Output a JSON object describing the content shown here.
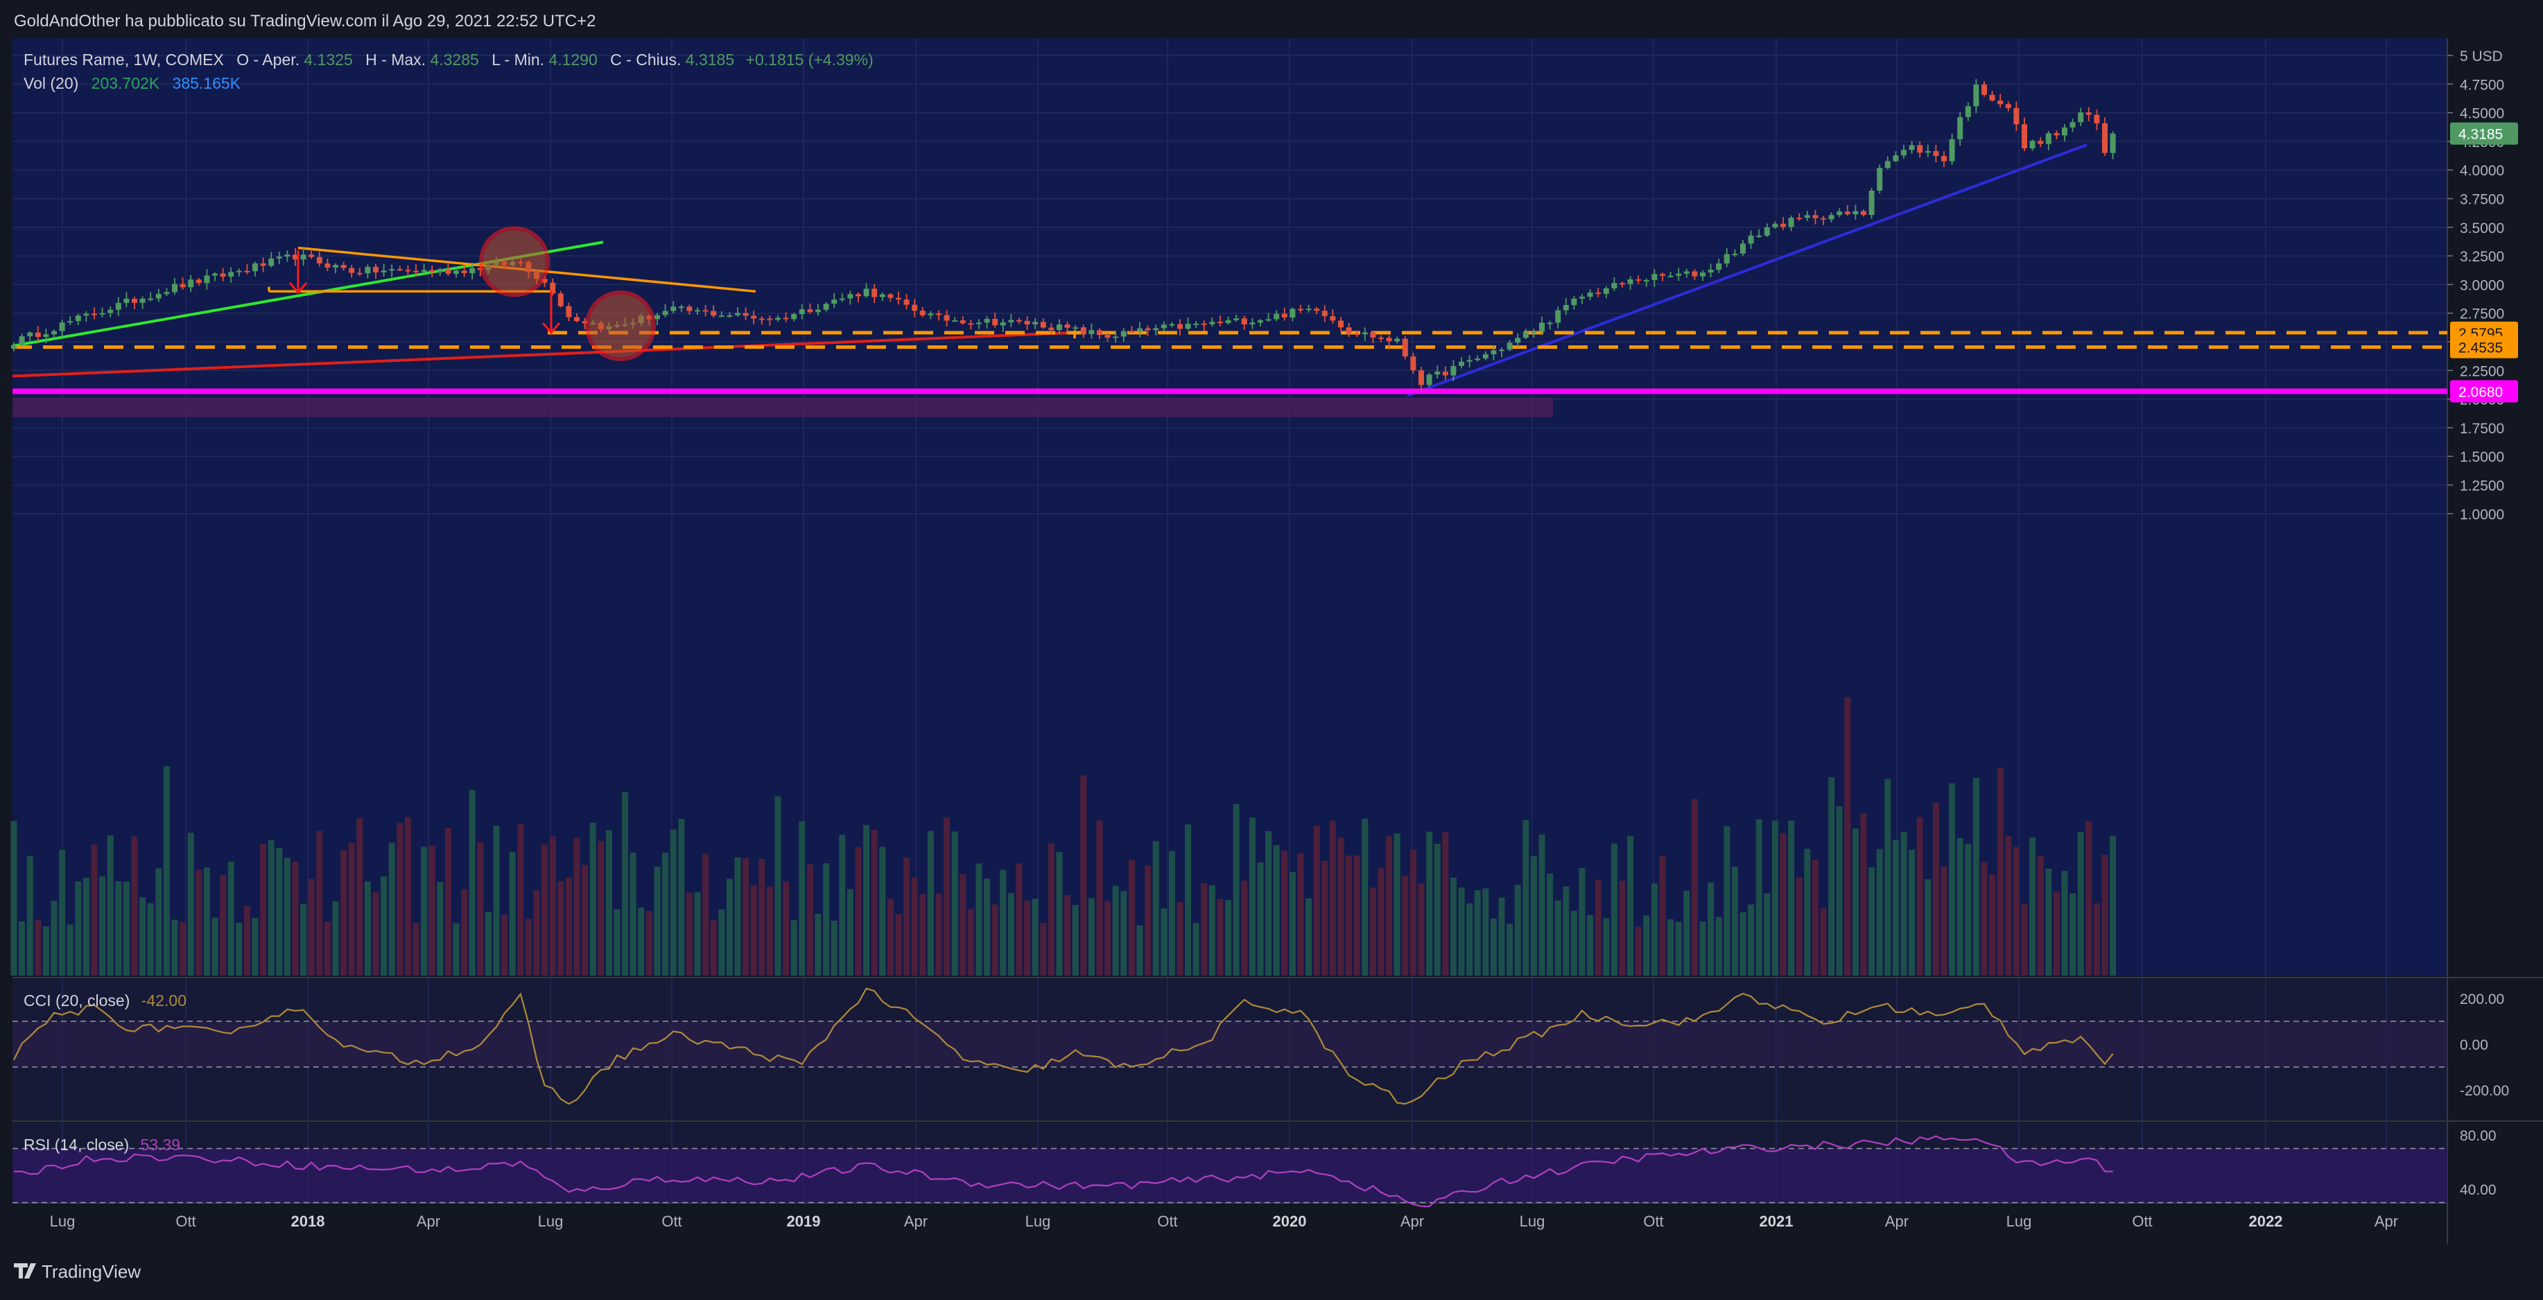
{
  "header": {
    "publish_line": "GoldAndOther ha pubblicato su TradingView.com il Ago 29, 2021 22:52 UTC+2",
    "symbol_line": "Futures Rame, 1W, COMEX",
    "ohlc": [
      {
        "label": "O - Aper.",
        "value": "4.1325"
      },
      {
        "label": "H - Max.",
        "value": "4.3285"
      },
      {
        "label": "L - Min.",
        "value": "4.1290"
      },
      {
        "label": "C - Chius.",
        "value": "4.3185"
      }
    ],
    "change": "+0.1815 (+4.39%)",
    "vol_label": "Vol (20)",
    "vol_value_1": "203.702K",
    "vol_value_2": "385.165K"
  },
  "footer": {
    "brand": "TradingView"
  },
  "colors": {
    "background": "#131722",
    "plot_background": "#111a4d",
    "candle_up": "#4f9a63",
    "candle_down": "#e0533c",
    "vol_up": "#1d4f4a",
    "vol_down": "#4d1f3a",
    "support_line": "#ff9800",
    "magenta_line": "#ff00ff",
    "green_trend": "#2ee82e",
    "red_trend": "#e0201a",
    "blue_trend": "#2c2cd8",
    "triangle": "#ff9800",
    "cci_line": "#b08a3a",
    "rsi_line": "#b040c0"
  },
  "chart_data": [
    {
      "type": "candlestick",
      "title": "Futures Rame, 1W, COMEX",
      "currency": "USD",
      "ylim": [
        1.0,
        5.0
      ],
      "y_ticks": [
        "1.0000",
        "1.2500",
        "1.5000",
        "1.7500",
        "2.0000",
        "2.2500",
        "2.5000",
        "2.7500",
        "3.0000",
        "3.2500",
        "3.5000",
        "3.7500",
        "4.0000",
        "4.2500",
        "4.5000",
        "4.7500",
        "5 USD"
      ],
      "x_ticks": [
        "Lug",
        "Ott",
        "2018",
        "Apr",
        "Lug",
        "Ott",
        "2019",
        "Apr",
        "Lug",
        "Ott",
        "2020",
        "Apr",
        "Lug",
        "Ott",
        "2021",
        "Apr",
        "Lug",
        "Ott",
        "2022",
        "Apr"
      ],
      "price_anchors": [
        {
          "week": 0,
          "close": 2.5
        },
        {
          "week": 10,
          "close": 2.75
        },
        {
          "week": 20,
          "close": 2.98
        },
        {
          "week": 27,
          "close": 3.1
        },
        {
          "week": 35,
          "close": 3.25
        },
        {
          "week": 42,
          "close": 3.12
        },
        {
          "week": 55,
          "close": 3.12
        },
        {
          "week": 63,
          "close": 3.2
        },
        {
          "week": 67,
          "close": 2.95
        },
        {
          "week": 69,
          "close": 2.72
        },
        {
          "week": 74,
          "close": 2.62
        },
        {
          "week": 82,
          "close": 2.78
        },
        {
          "week": 95,
          "close": 2.7
        },
        {
          "week": 106,
          "close": 2.95
        },
        {
          "week": 115,
          "close": 2.7
        },
        {
          "week": 127,
          "close": 2.66
        },
        {
          "week": 136,
          "close": 2.55
        },
        {
          "week": 143,
          "close": 2.62
        },
        {
          "week": 155,
          "close": 2.7
        },
        {
          "week": 162,
          "close": 2.8
        },
        {
          "week": 166,
          "close": 2.6
        },
        {
          "week": 172,
          "close": 2.5
        },
        {
          "week": 175,
          "close": 2.15
        },
        {
          "week": 179,
          "close": 2.27
        },
        {
          "week": 185,
          "close": 2.45
        },
        {
          "week": 189,
          "close": 2.6
        },
        {
          "week": 195,
          "close": 2.9
        },
        {
          "week": 202,
          "close": 3.05
        },
        {
          "week": 210,
          "close": 3.1
        },
        {
          "week": 218,
          "close": 3.5
        },
        {
          "week": 224,
          "close": 3.6
        },
        {
          "week": 230,
          "close": 3.62
        },
        {
          "week": 232,
          "close": 4.05
        },
        {
          "week": 236,
          "close": 4.2
        },
        {
          "week": 240,
          "close": 4.1
        },
        {
          "week": 242,
          "close": 4.45
        },
        {
          "week": 244,
          "close": 4.72
        },
        {
          "week": 248,
          "close": 4.55
        },
        {
          "week": 250,
          "close": 4.2
        },
        {
          "week": 255,
          "close": 4.35
        },
        {
          "week": 257,
          "close": 4.5
        },
        {
          "week": 259,
          "close": 4.4
        },
        {
          "week": 260,
          "close": 4.14
        },
        {
          "week": 261,
          "close": 4.32
        }
      ],
      "last_price": "4.3185",
      "price_labels": [
        {
          "value": 2.5795,
          "text": "2.5795"
        },
        {
          "value": 2.4535,
          "text": "2.4535"
        },
        {
          "value": 2.068,
          "text": "2.0680"
        }
      ],
      "hidden_label": "2.5000"
    },
    {
      "type": "bar",
      "title": "Vol (20)",
      "note": "volume histogram at bottom of price pane"
    },
    {
      "type": "line",
      "title": "CCI (20, close)",
      "last_value": "-42.00",
      "ylim": [
        -300,
        300
      ],
      "y_ticks": [
        "200.00",
        "0.00",
        "-200.00"
      ],
      "bands": [
        100,
        -100
      ],
      "anchors": [
        {
          "week": 0,
          "v": -50
        },
        {
          "week": 5,
          "v": 120
        },
        {
          "week": 10,
          "v": 160
        },
        {
          "week": 15,
          "v": 60
        },
        {
          "week": 20,
          "v": 80
        },
        {
          "week": 27,
          "v": 30
        },
        {
          "week": 30,
          "v": 100
        },
        {
          "week": 35,
          "v": 160
        },
        {
          "week": 42,
          "v": -20
        },
        {
          "week": 50,
          "v": -80
        },
        {
          "week": 58,
          "v": 0
        },
        {
          "week": 63,
          "v": 200
        },
        {
          "week": 66,
          "v": -180
        },
        {
          "week": 69,
          "v": -260
        },
        {
          "week": 75,
          "v": -60
        },
        {
          "week": 82,
          "v": 40
        },
        {
          "week": 90,
          "v": -20
        },
        {
          "week": 98,
          "v": -90
        },
        {
          "week": 106,
          "v": 240
        },
        {
          "week": 112,
          "v": 110
        },
        {
          "week": 118,
          "v": -60
        },
        {
          "week": 125,
          "v": -130
        },
        {
          "week": 132,
          "v": -40
        },
        {
          "week": 138,
          "v": -100
        },
        {
          "week": 148,
          "v": 0
        },
        {
          "week": 153,
          "v": 180
        },
        {
          "week": 160,
          "v": 140
        },
        {
          "week": 166,
          "v": -140
        },
        {
          "week": 170,
          "v": -200
        },
        {
          "week": 173,
          "v": -270
        },
        {
          "week": 180,
          "v": -90
        },
        {
          "week": 188,
          "v": 20
        },
        {
          "week": 195,
          "v": 130
        },
        {
          "week": 202,
          "v": 90
        },
        {
          "week": 210,
          "v": 110
        },
        {
          "week": 215,
          "v": 220
        },
        {
          "week": 225,
          "v": 90
        },
        {
          "week": 232,
          "v": 170
        },
        {
          "week": 240,
          "v": 120
        },
        {
          "week": 245,
          "v": 180
        },
        {
          "week": 250,
          "v": -30
        },
        {
          "week": 255,
          "v": 20
        },
        {
          "week": 258,
          "v": 10
        },
        {
          "week": 260,
          "v": -100
        },
        {
          "week": 261,
          "v": -42
        }
      ]
    },
    {
      "type": "line",
      "title": "RSI (14, close)",
      "last_value": "53.39",
      "ylim": [
        20,
        90
      ],
      "y_ticks": [
        "80.00",
        "40.00"
      ],
      "bands": [
        70,
        30
      ],
      "anchors": [
        {
          "week": 0,
          "v": 50
        },
        {
          "week": 10,
          "v": 63
        },
        {
          "week": 20,
          "v": 64
        },
        {
          "week": 30,
          "v": 60
        },
        {
          "week": 40,
          "v": 56
        },
        {
          "week": 55,
          "v": 54
        },
        {
          "week": 63,
          "v": 60
        },
        {
          "week": 69,
          "v": 37
        },
        {
          "week": 80,
          "v": 48
        },
        {
          "week": 95,
          "v": 46
        },
        {
          "week": 106,
          "v": 57
        },
        {
          "week": 120,
          "v": 44
        },
        {
          "week": 136,
          "v": 42
        },
        {
          "week": 155,
          "v": 50
        },
        {
          "week": 162,
          "v": 54
        },
        {
          "week": 175,
          "v": 27
        },
        {
          "week": 185,
          "v": 46
        },
        {
          "week": 200,
          "v": 62
        },
        {
          "week": 215,
          "v": 70
        },
        {
          "week": 232,
          "v": 74
        },
        {
          "week": 244,
          "v": 79
        },
        {
          "week": 250,
          "v": 58
        },
        {
          "week": 258,
          "v": 62
        },
        {
          "week": 261,
          "v": 53
        }
      ]
    }
  ]
}
